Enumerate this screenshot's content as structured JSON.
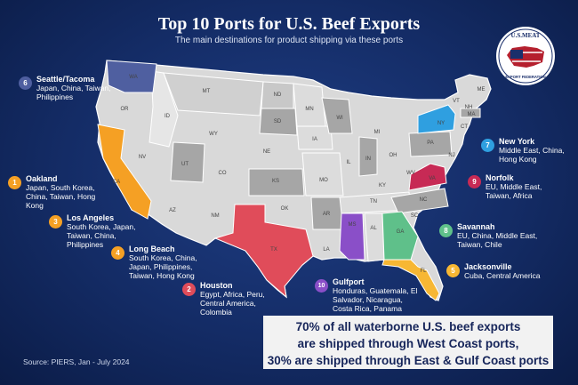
{
  "title": "Top 10 Ports for U.S. Beef Exports",
  "subtitle": "The main destinations for product shipping via these ports",
  "logo": {
    "top_text": "U.S.MEAT",
    "bottom_text": "EXPORT FEDERATION"
  },
  "ports": [
    {
      "rank": "6",
      "name": "Seattle/Tacoma",
      "destinations": "Japan, China, Taiwan, Philippines",
      "color": "#4f5fa0"
    },
    {
      "rank": "1",
      "name": "Oakland",
      "destinations": "Japan, South Korea, China, Taiwan, Hong Kong",
      "color": "#f5a024"
    },
    {
      "rank": "3",
      "name": "Los Angeles",
      "destinations": "South Korea, Japan, Taiwan, China, Philippines",
      "color": "#f5a024"
    },
    {
      "rank": "4",
      "name": "Long Beach",
      "destinations": "South Korea, China, Japan, Philippines, Taiwan, Hong Kong",
      "color": "#f5a024"
    },
    {
      "rank": "2",
      "name": "Houston",
      "destinations": "Egypt, Africa, Peru, Central America, Colombia",
      "color": "#e04c5a"
    },
    {
      "rank": "10",
      "name": "Gulfport",
      "destinations": "Honduras, Guatemala, El Salvador, Nicaragua, Costa Rica, Panama",
      "color": "#8a4fc8"
    },
    {
      "rank": "5",
      "name": "Jacksonville",
      "destinations": "Cuba, Central America",
      "color": "#f7b733"
    },
    {
      "rank": "8",
      "name": "Savannah",
      "destinations": "EU, China, Middle East, Taiwan, Chile",
      "color": "#5fc08a"
    },
    {
      "rank": "9",
      "name": "Norfolk",
      "destinations": "EU, Middle East, Taiwan, Africa",
      "color": "#c72a55"
    },
    {
      "rank": "7",
      "name": "New York",
      "destinations": "Middle East, China, Hong Kong",
      "color": "#2f9fe0"
    }
  ],
  "state_labels": [
    "WA",
    "OR",
    "ID",
    "MT",
    "WY",
    "NV",
    "CA",
    "UT",
    "CO",
    "AZ",
    "NM",
    "ND",
    "SD",
    "NE",
    "KS",
    "OK",
    "TX",
    "MN",
    "IA",
    "MO",
    "AR",
    "LA",
    "WI",
    "IL",
    "MI",
    "IN",
    "OH",
    "KY",
    "TN",
    "MS",
    "AL",
    "GA",
    "FL",
    "SC",
    "NC",
    "VA",
    "WV",
    "PA",
    "NY",
    "VT",
    "NH",
    "ME",
    "MA",
    "CT",
    "NJ"
  ],
  "callout": {
    "line1": "70% of all waterborne U.S. beef exports",
    "line2": "are shipped through West Coast ports,",
    "line3": "30% are shipped through East & Gulf Coast ports"
  },
  "source": "Source: PIERS, Jan - July 2024",
  "colors": {
    "background": "#142c66",
    "land": "#d9d9d9",
    "land_dark": "#a6a6a6",
    "callout_bg": "#f2f2f2",
    "callout_text": "#16255a"
  }
}
